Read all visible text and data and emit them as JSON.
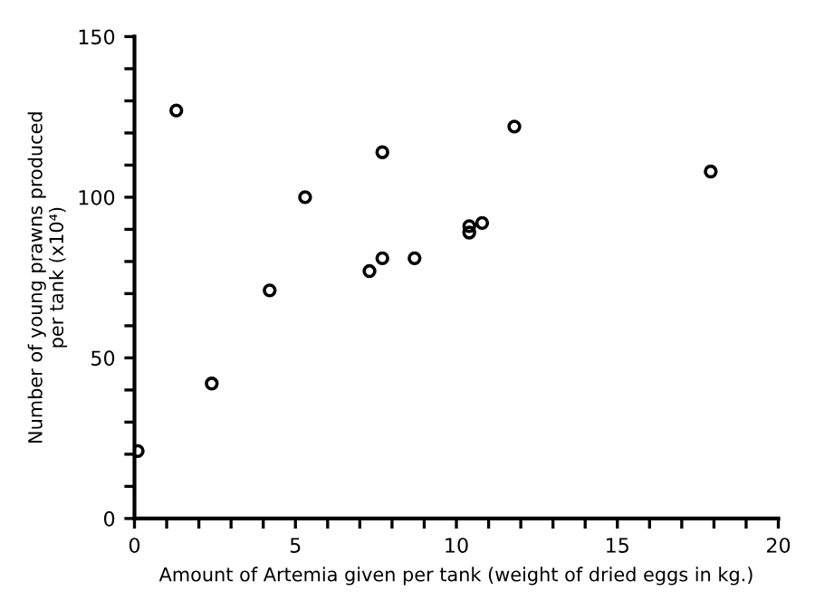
{
  "chart_data": {
    "type": "scatter",
    "xlabel": "Amount of Artemia given per tank (weight of dried eggs in kg.)",
    "ylabel": "Number of young prawns produced\nper tank (x10⁴)",
    "x": [
      0.1,
      1.3,
      2.4,
      4.2,
      5.3,
      7.3,
      7.7,
      7.7,
      8.7,
      10.4,
      10.4,
      10.8,
      11.8,
      17.9
    ],
    "series": [
      {
        "color": "#000000",
        "values": [
          21,
          127,
          42,
          71,
          100,
          77,
          114,
          81,
          81,
          91,
          89,
          92,
          122,
          108
        ]
      }
    ],
    "marker": "circle",
    "grid": false,
    "legend": false,
    "xlim": [
      0,
      20
    ],
    "ylim": [
      0,
      150
    ],
    "xticks": [
      0,
      {
        "value": 1,
        "label": null
      },
      {
        "value": 2,
        "label": null
      },
      {
        "value": 3,
        "label": null
      },
      {
        "value": 4,
        "label": null
      },
      5,
      {
        "value": 6,
        "label": null
      },
      {
        "value": 7,
        "label": null
      },
      {
        "value": 8,
        "label": null
      },
      {
        "value": 9,
        "label": null
      },
      10,
      {
        "value": 11,
        "label": null
      },
      {
        "value": 12,
        "label": null
      },
      {
        "value": 13,
        "label": null
      },
      {
        "value": 14,
        "label": null
      },
      15,
      {
        "value": 16,
        "label": null
      },
      {
        "value": 17,
        "label": null
      },
      {
        "value": 18,
        "label": null
      },
      {
        "value": 19,
        "label": null
      },
      20
    ],
    "yticks": [
      0,
      {
        "value": 10,
        "label": null
      },
      {
        "value": 20,
        "label": null
      },
      {
        "value": 30,
        "label": null
      },
      {
        "value": 40,
        "label": null
      },
      50,
      {
        "value": 60,
        "label": null
      },
      {
        "value": 70,
        "label": null
      },
      {
        "value": 80,
        "label": null
      },
      {
        "value": 90,
        "label": null
      },
      100,
      {
        "value": 110,
        "label": null
      },
      {
        "value": 120,
        "label": null
      },
      {
        "value": 130,
        "label": null
      },
      {
        "value": 140,
        "label": null
      },
      150
    ]
  }
}
